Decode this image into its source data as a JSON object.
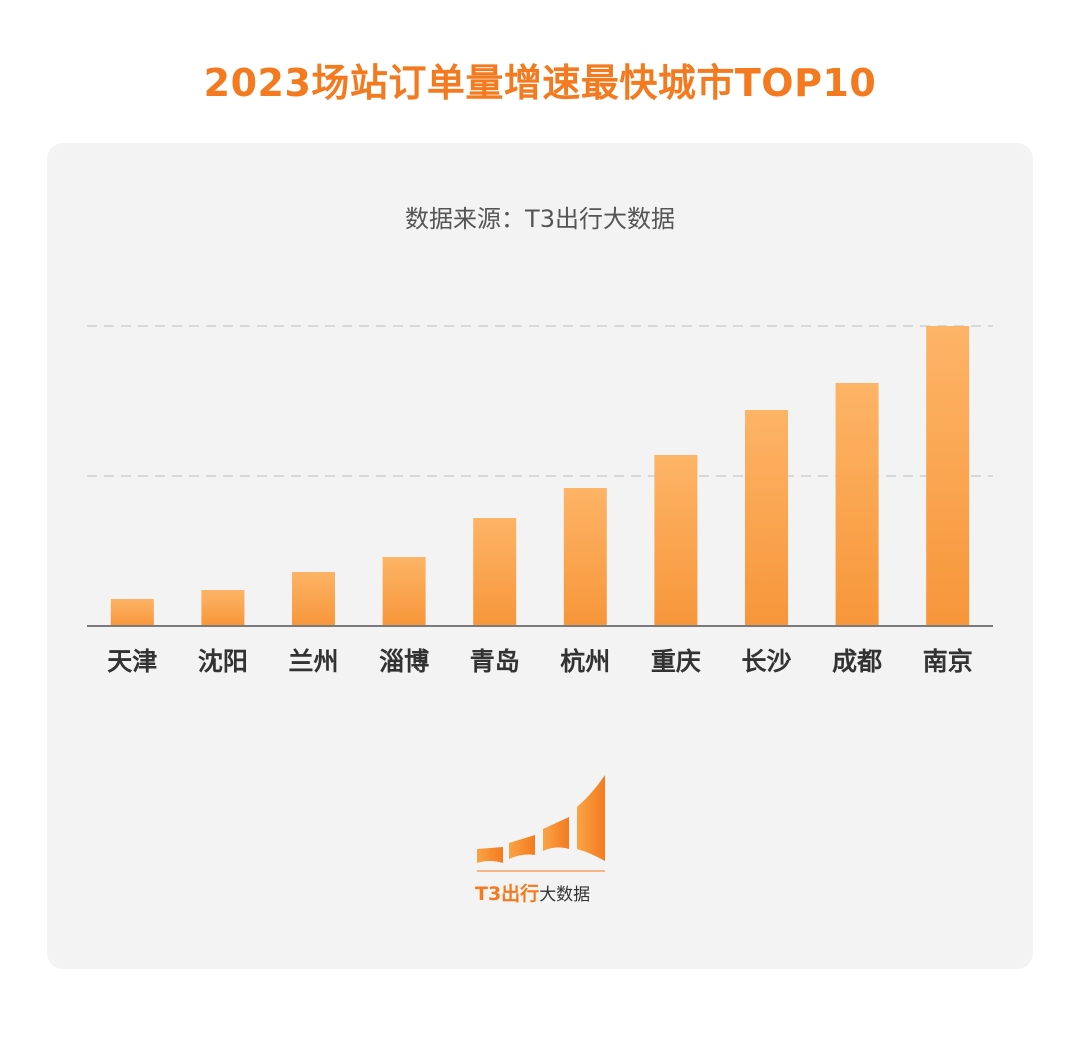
{
  "title": "2023场站订单量增速最快城市TOP10",
  "source": "数据来源：T3出行大数据",
  "logo": {
    "brand": "T3出行",
    "suffix": "大数据"
  },
  "colors": {
    "accent": "#f47a1f",
    "bar_top": "#fdb466",
    "bar_bottom": "#f7963a",
    "grid": "#d8d8d8",
    "axis": "#7a7a7a",
    "label": "#333333"
  },
  "chart_data": {
    "type": "bar",
    "categories": [
      "天津",
      "沈阳",
      "兰州",
      "淄博",
      "青岛",
      "杭州",
      "重庆",
      "长沙",
      "成都",
      "南京"
    ],
    "values": [
      0.09,
      0.12,
      0.18,
      0.23,
      0.36,
      0.46,
      0.57,
      0.72,
      0.81,
      1.0
    ],
    "title": "2023场站订单量增速最快城市TOP10",
    "xlabel": "",
    "ylabel": "",
    "ylim": [
      0,
      1
    ],
    "gridlines": [
      0.5,
      1.0
    ],
    "grid": true,
    "legend": "none"
  }
}
